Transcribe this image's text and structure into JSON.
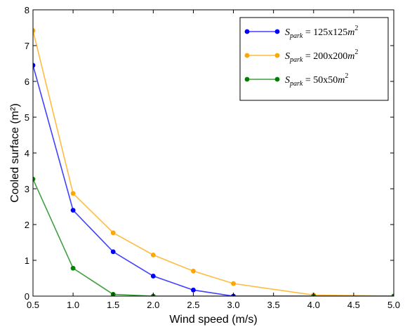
{
  "chart_data": {
    "type": "line",
    "xlabel": "Wind speed (m/s)",
    "ylabel": "Cooled surface (m²)",
    "xlim": [
      0.5,
      5.0
    ],
    "ylim": [
      0,
      8
    ],
    "xticks": [
      "0.5",
      "1.0",
      "1.5",
      "2.0",
      "2.5",
      "3.0",
      "3.5",
      "4.0",
      "4.5",
      "5.0"
    ],
    "yticks": [
      "0",
      "1",
      "2",
      "3",
      "4",
      "5",
      "6",
      "7",
      "8"
    ],
    "grid": false,
    "legend_position": "top-right",
    "series": [
      {
        "name": "S_park = 125x125m²",
        "legend_main": "S",
        "legend_sub": "park",
        "legend_eq": " = 125x125",
        "legend_unit": "m",
        "legend_sup": "2",
        "color": "#0000ff",
        "x": [
          0.5,
          1.0,
          1.5,
          2.0,
          2.5,
          3.0,
          4.0,
          5.0
        ],
        "y": [
          6.45,
          2.4,
          1.24,
          0.56,
          0.17,
          0.0,
          0.0,
          0.0
        ]
      },
      {
        "name": "S_park = 200x200m²",
        "legend_main": "S",
        "legend_sub": "park",
        "legend_eq": " = 200x200",
        "legend_unit": "m",
        "legend_sup": "2",
        "color": "#ffa500",
        "x": [
          0.5,
          1.0,
          1.5,
          2.0,
          2.5,
          3.0,
          4.0,
          5.0
        ],
        "y": [
          7.42,
          2.87,
          1.77,
          1.15,
          0.7,
          0.35,
          0.03,
          0.0
        ]
      },
      {
        "name": "S_park = 50x50m²",
        "legend_main": "S",
        "legend_sub": "park",
        "legend_eq": " = 50x50",
        "legend_unit": "m",
        "legend_sup": "2",
        "color": "#008000",
        "x": [
          0.5,
          1.0,
          1.5,
          2.0,
          4.0,
          5.0
        ],
        "y": [
          3.27,
          0.78,
          0.05,
          0.0,
          0.0,
          0.0
        ]
      }
    ]
  }
}
